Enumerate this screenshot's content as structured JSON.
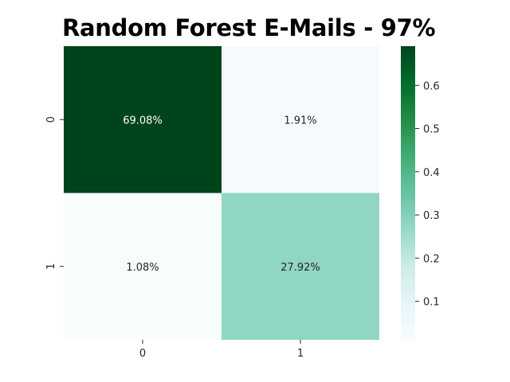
{
  "chart_data": {
    "type": "heatmap",
    "title": "Random Forest E-Mails - 97%",
    "xlabel": "",
    "ylabel": "",
    "x_categories": [
      "0",
      "1"
    ],
    "y_categories": [
      "0",
      "1"
    ],
    "values": [
      [
        0.6908,
        0.0191
      ],
      [
        0.0108,
        0.2792
      ]
    ],
    "annotations": [
      [
        "69.08%",
        "1.91%"
      ],
      [
        "1.08%",
        "27.92%"
      ]
    ],
    "colormap": "BuGn",
    "vmin": 0.0108,
    "vmax": 0.6908,
    "colorbar_ticks": [
      "0.1",
      "0.2",
      "0.3",
      "0.4",
      "0.5",
      "0.6"
    ],
    "colorbar_tick_values": [
      0.1,
      0.2,
      0.3,
      0.4,
      0.5,
      0.6
    ],
    "colors": {
      "low": "#f7fcfd",
      "high": "#00441b",
      "text_dark": "#262626",
      "text_light": "#ffffff"
    }
  }
}
